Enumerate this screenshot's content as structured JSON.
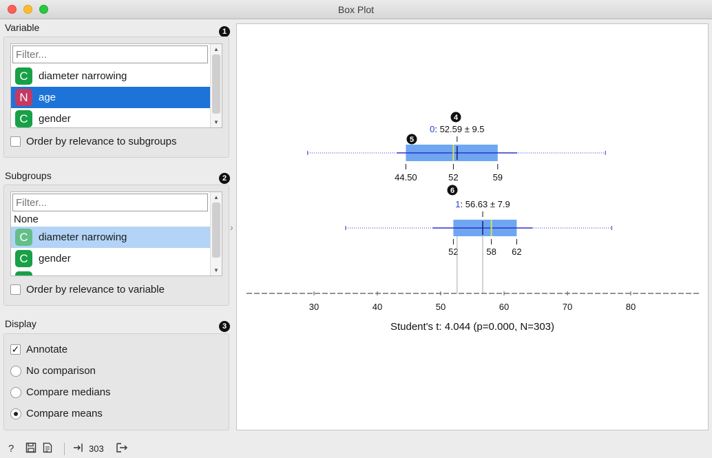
{
  "window": {
    "title": "Box Plot"
  },
  "variable": {
    "title": "Variable",
    "badge": "1",
    "filter_placeholder": "Filter...",
    "items": [
      {
        "type": "C",
        "label": "diameter narrowing"
      },
      {
        "type": "N",
        "label": "age"
      },
      {
        "type": "C",
        "label": "gender"
      }
    ],
    "order_label": "Order by relevance to subgroups"
  },
  "subgroups": {
    "title": "Subgroups",
    "badge": "2",
    "filter_placeholder": "Filter...",
    "none_label": "None",
    "items": [
      {
        "type": "C",
        "label": "diameter narrowing"
      },
      {
        "type": "C",
        "label": "gender"
      }
    ],
    "order_label": "Order by relevance to variable"
  },
  "display": {
    "title": "Display",
    "badge": "3",
    "annotate_label": "Annotate",
    "annotate_checked": true,
    "options": [
      "No comparison",
      "Compare medians",
      "Compare means"
    ],
    "selected_option": "Compare means"
  },
  "plot": {
    "badges": [
      "4",
      "5",
      "6"
    ],
    "groups": [
      {
        "label_prefix": "0",
        "label_rest": ": 52.59 ± 9.5",
        "mean": 52.59,
        "sd": 9.5,
        "min": 29,
        "q1": 44.5,
        "median": 52,
        "q3": 59,
        "max": 76,
        "wmin": 29,
        "wmax": 76,
        "tick_labels": [
          "44.50",
          "52",
          "59"
        ]
      },
      {
        "label_prefix": "1",
        "label_rest": ": 56.63 ± 7.9",
        "mean": 56.63,
        "sd": 7.9,
        "min": 35,
        "q1": 52,
        "median": 58,
        "q3": 62,
        "max": 77,
        "wmin": 35,
        "wmax": 77,
        "tick_labels": [
          "52",
          "58",
          "62"
        ]
      }
    ],
    "axis_ticks": [
      "30",
      "40",
      "50",
      "60",
      "70",
      "80"
    ],
    "axis_values": [
      30,
      40,
      50,
      60,
      70,
      80
    ],
    "stat_text": "Student's t: 4.044 (p=0.000, N=303)",
    "colors": {
      "box": "#6ea6f2",
      "whisker": "#2b32c9",
      "median": "#d4e35a",
      "mean": "#1b1b7a",
      "prefix": "#1f3fd8"
    }
  },
  "statusbar": {
    "count": "303"
  }
}
